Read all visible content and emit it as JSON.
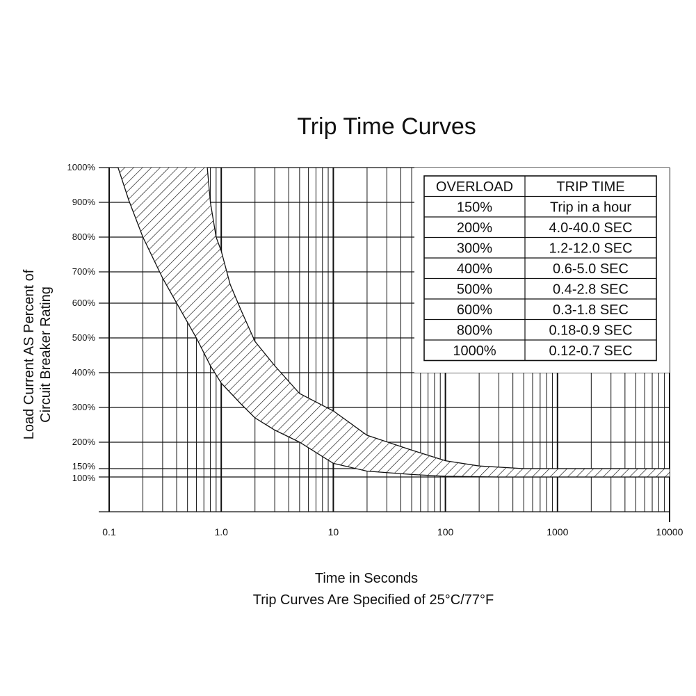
{
  "chart_data": {
    "type": "area",
    "title": "Trip Time Curves",
    "xlabel": "Time in Seconds",
    "subtitle": "Trip Curves Are Specified of 25°C/77°F",
    "ylabel_line1": "Load Current AS Percent of",
    "ylabel_line2": "Circuit Breaker Rating",
    "x_scale": "log",
    "xlim": [
      0.1,
      10000
    ],
    "x_tick_labels": [
      "0.1",
      "1.0",
      "10",
      "100",
      "1000",
      "10000"
    ],
    "y_tick_labels": [
      "1000%",
      "900%",
      "800%",
      "700%",
      "600%",
      "500%",
      "400%",
      "300%",
      "200%",
      "150%",
      "100%"
    ],
    "y_tick_values": [
      1000,
      900,
      800,
      700,
      600,
      500,
      400,
      300,
      200,
      150,
      100
    ],
    "grid": true,
    "series": [
      {
        "role": "band-lower",
        "x": [
          0.12,
          0.15,
          0.2,
          0.3,
          0.4,
          0.6,
          0.8,
          1.0,
          1.5,
          2,
          3,
          5,
          10,
          20,
          50,
          100,
          300,
          1000,
          10000
        ],
        "y": [
          1000,
          905,
          800,
          680,
          600,
          500,
          420,
          370,
          310,
          270,
          235,
          200,
          160,
          135,
          115,
          104,
          100,
          100,
          100
        ]
      },
      {
        "role": "band-upper",
        "x": [
          0.75,
          0.8,
          0.9,
          1.0,
          1.2,
          1.5,
          2,
          3,
          5,
          10,
          20,
          50,
          100,
          200,
          500,
          1000,
          3000,
          10000
        ],
        "y": [
          1000,
          900,
          800,
          760,
          660,
          580,
          490,
          420,
          340,
          290,
          220,
          185,
          165,
          155,
          150,
          150,
          150,
          150
        ]
      }
    ],
    "table": {
      "headers": [
        "OVERLOAD",
        "TRIP TIME"
      ],
      "rows": [
        [
          "150%",
          "Trip in a hour"
        ],
        [
          "200%",
          "4.0-40.0 SEC"
        ],
        [
          "300%",
          "1.2-12.0 SEC"
        ],
        [
          "400%",
          "0.6-5.0 SEC"
        ],
        [
          "500%",
          "0.4-2.8 SEC"
        ],
        [
          "600%",
          "0.3-1.8 SEC"
        ],
        [
          "800%",
          "0.18-0.9 SEC"
        ],
        [
          "1000%",
          "0.12-0.7 SEC"
        ]
      ]
    },
    "colors": {
      "ink": "#111111",
      "background": "#ffffff"
    }
  }
}
